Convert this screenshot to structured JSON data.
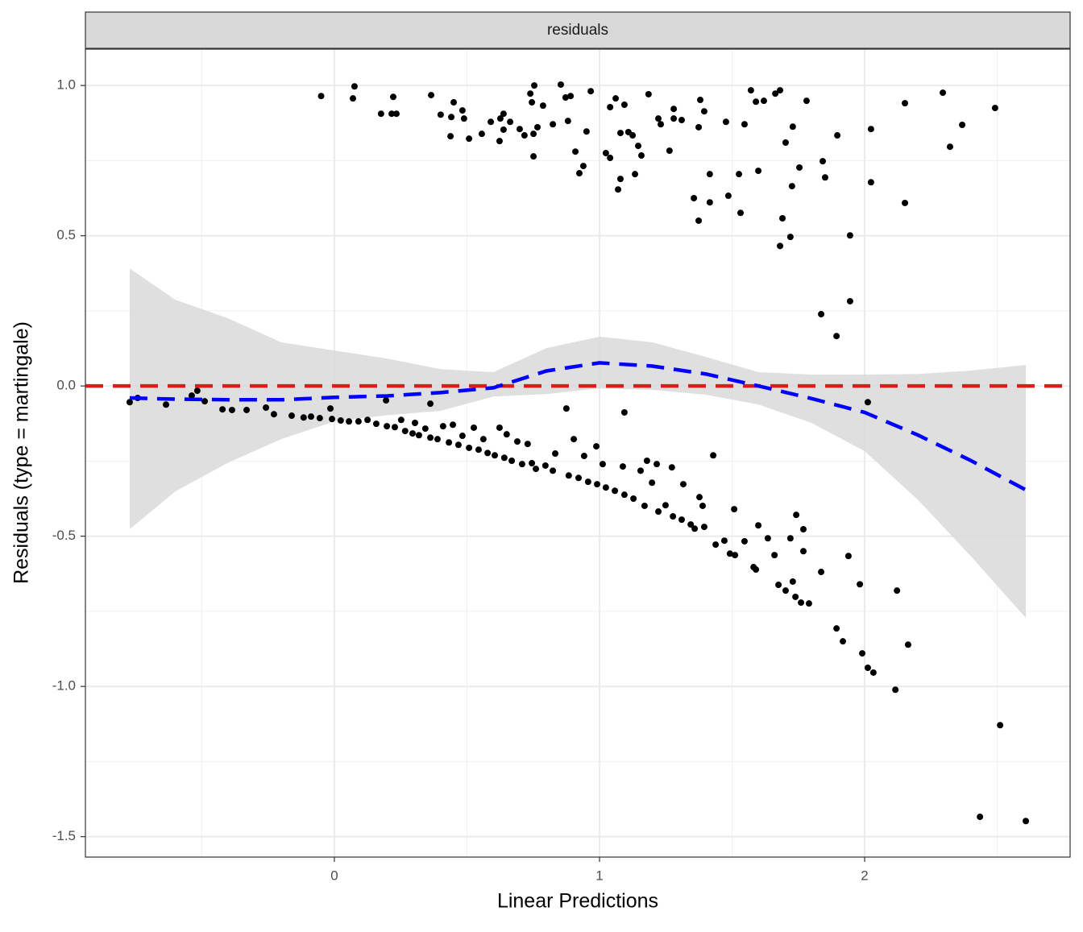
{
  "chart_data": {
    "type": "scatter",
    "facet_label": "residuals",
    "x_label": "Linear Predictions",
    "y_label": "Residuals (type = martingale)",
    "xlim": [
      -0.939,
      2.775
    ],
    "ylim": [
      -1.568,
      1.121
    ],
    "xticks": [
      0,
      1,
      2
    ],
    "yticks": [
      {
        "value": -1.5,
        "label": "-1.5"
      },
      {
        "value": -1,
        "label": "-1.0"
      },
      {
        "value": -0.5,
        "label": "-0.5"
      },
      {
        "value": 0,
        "label": "0.0"
      },
      {
        "value": 0.5,
        "label": "0.5"
      },
      {
        "value": 1,
        "label": "1.0"
      }
    ],
    "minor_xticks": [
      -0.5,
      0.5,
      1.5,
      2.5
    ],
    "minor_yticks": [
      -1.25,
      -0.75,
      -0.25,
      0.25,
      0.75
    ],
    "grid": true,
    "points": {
      "color": "#000000",
      "x": [
        -0.05,
        0.076,
        0.07,
        0.176,
        0.222,
        0.216,
        0.234,
        0.365,
        0.401,
        0.45,
        0.441,
        0.483,
        0.489,
        0.438,
        0.508,
        0.556,
        0.59,
        0.626,
        0.638,
        0.623,
        0.638,
        0.663,
        0.699,
        0.717,
        0.739,
        0.754,
        0.745,
        0.751,
        0.751,
        0.766,
        0.787,
        0.824,
        0.854,
        0.872,
        0.891,
        0.881,
        0.909,
        0.924,
        0.939,
        0.951,
        0.967,
        1.024,
        1.04,
        1.04,
        1.061,
        1.079,
        1.079,
        1.07,
        1.094,
        1.109,
        1.125,
        1.134,
        1.146,
        1.158,
        1.185,
        1.222,
        1.231,
        1.264,
        1.28,
        1.28,
        1.31,
        1.356,
        1.374,
        1.38,
        1.374,
        1.395,
        1.416,
        1.416,
        1.477,
        1.486,
        1.526,
        1.532,
        1.547,
        1.571,
        1.59,
        1.599,
        1.62,
        1.663,
        1.681,
        1.681,
        1.69,
        1.702,
        1.72,
        1.729,
        1.726,
        1.754,
        1.781,
        1.836,
        1.842,
        1.851,
        1.897,
        1.894,
        1.945,
        1.945,
        2.024,
        2.024,
        2.152,
        2.152,
        2.295,
        2.322,
        2.368,
        2.492,
        -0.772,
        -0.742,
        -0.635,
        -0.538,
        -0.517,
        -0.489,
        -0.422,
        -0.386,
        -0.331,
        -0.258,
        -0.228,
        -0.161,
        -0.116,
        -0.088,
        -0.055,
        -0.015,
        -0.009,
        0.024,
        0.055,
        0.091,
        0.125,
        0.158,
        0.195,
        0.198,
        0.228,
        0.252,
        0.267,
        0.295,
        0.304,
        0.319,
        0.343,
        0.362,
        0.362,
        0.389,
        0.41,
        0.432,
        0.447,
        0.468,
        0.483,
        0.508,
        0.526,
        0.544,
        0.562,
        0.578,
        0.605,
        0.623,
        0.641,
        0.65,
        0.669,
        0.69,
        0.708,
        0.729,
        0.745,
        0.76,
        0.796,
        0.824,
        0.833,
        0.875,
        0.884,
        0.903,
        0.921,
        0.942,
        0.957,
        0.988,
        0.991,
        1.012,
        1.024,
        1.058,
        1.094,
        1.094,
        1.088,
        1.128,
        1.155,
        1.17,
        1.179,
        1.198,
        1.216,
        1.222,
        1.249,
        1.273,
        1.277,
        1.31,
        1.316,
        1.344,
        1.359,
        1.377,
        1.389,
        1.395,
        1.429,
        1.438,
        1.471,
        1.492,
        1.508,
        1.511,
        1.547,
        1.581,
        1.59,
        1.599,
        1.635,
        1.66,
        1.675,
        1.702,
        1.72,
        1.729,
        1.742,
        1.739,
        1.76,
        1.769,
        1.769,
        1.79,
        1.836,
        1.894,
        1.918,
        1.939,
        1.982,
        1.991,
        2.012,
        2.012,
        2.033,
        2.116,
        2.122,
        2.164,
        2.435,
        2.511,
        2.608
      ],
      "y": [
        0.965,
        0.997,
        0.957,
        0.906,
        0.962,
        0.906,
        0.906,
        0.968,
        0.903,
        0.944,
        0.895,
        0.917,
        0.89,
        0.831,
        0.823,
        0.839,
        0.879,
        0.89,
        0.906,
        0.815,
        0.853,
        0.879,
        0.855,
        0.834,
        0.973,
        1.0,
        0.944,
        0.839,
        0.764,
        0.861,
        0.933,
        0.871,
        1.003,
        0.96,
        0.965,
        0.882,
        0.78,
        0.708,
        0.732,
        0.847,
        0.981,
        0.775,
        0.928,
        0.759,
        0.957,
        0.842,
        0.689,
        0.654,
        0.936,
        0.845,
        0.834,
        0.705,
        0.799,
        0.767,
        0.971,
        0.89,
        0.871,
        0.783,
        0.922,
        0.89,
        0.885,
        0.625,
        0.55,
        0.952,
        0.861,
        0.914,
        0.705,
        0.611,
        0.879,
        0.633,
        0.705,
        0.576,
        0.871,
        0.984,
        0.946,
        0.716,
        0.949,
        0.973,
        0.984,
        0.466,
        0.558,
        0.81,
        0.496,
        0.863,
        0.665,
        0.727,
        0.949,
        0.239,
        0.748,
        0.694,
        0.834,
        0.166,
        0.501,
        0.282,
        0.855,
        0.678,
        0.941,
        0.609,
        0.976,
        0.796,
        0.869,
        0.925,
        -0.054,
        -0.04,
        -0.062,
        -0.032,
        -0.016,
        -0.051,
        -0.078,
        -0.08,
        -0.08,
        -0.072,
        -0.094,
        -0.099,
        -0.105,
        -0.102,
        -0.107,
        -0.075,
        -0.11,
        -0.115,
        -0.118,
        -0.118,
        -0.113,
        -0.126,
        -0.048,
        -0.134,
        -0.137,
        -0.113,
        -0.15,
        -0.158,
        -0.123,
        -0.164,
        -0.142,
        -0.059,
        -0.172,
        -0.177,
        -0.134,
        -0.188,
        -0.129,
        -0.196,
        -0.166,
        -0.206,
        -0.139,
        -0.212,
        -0.177,
        -0.223,
        -0.231,
        -0.139,
        -0.239,
        -0.161,
        -0.249,
        -0.185,
        -0.26,
        -0.193,
        -0.257,
        -0.276,
        -0.265,
        -0.282,
        -0.225,
        -0.075,
        -0.298,
        -0.177,
        -0.306,
        -0.233,
        -0.319,
        -0.201,
        -0.327,
        -0.26,
        -0.338,
        -0.349,
        -0.088,
        -0.362,
        -0.268,
        -0.375,
        -0.282,
        -0.399,
        -0.249,
        -0.322,
        -0.26,
        -0.418,
        -0.397,
        -0.271,
        -0.434,
        -0.445,
        -0.327,
        -0.461,
        -0.475,
        -0.37,
        -0.399,
        -0.469,
        -0.231,
        -0.528,
        -0.515,
        -0.558,
        -0.41,
        -0.563,
        -0.517,
        -0.603,
        -0.611,
        -0.464,
        -0.507,
        -0.563,
        -0.662,
        -0.681,
        -0.507,
        -0.651,
        -0.429,
        -0.702,
        -0.721,
        -0.477,
        -0.55,
        -0.724,
        -0.619,
        -0.807,
        -0.85,
        -0.566,
        -0.66,
        -0.89,
        -0.054,
        -0.938,
        -0.954,
        -1.011,
        -0.681,
        -0.861,
        -1.434,
        -1.129,
        -1.448
      ]
    },
    "smooth": {
      "color": "#0000ff",
      "band_color": "#d9d9d9",
      "x": [
        -0.772,
        -0.6,
        -0.4,
        -0.2,
        0,
        0.2,
        0.4,
        0.6,
        0.8,
        1.0,
        1.2,
        1.4,
        1.6,
        1.8,
        2.0,
        2.2,
        2.4,
        2.608
      ],
      "y": [
        -0.04,
        -0.044,
        -0.046,
        -0.046,
        -0.038,
        -0.033,
        -0.022,
        -0.006,
        0.05,
        0.077,
        0.066,
        0.04,
        0.0,
        -0.042,
        -0.088,
        -0.163,
        -0.248,
        -0.346
      ],
      "lower": [
        -0.477,
        -0.351,
        -0.255,
        -0.177,
        -0.118,
        -0.097,
        -0.083,
        -0.035,
        -0.027,
        -0.008,
        -0.013,
        -0.029,
        -0.062,
        -0.123,
        -0.217,
        -0.378,
        -0.566,
        -0.772
      ],
      "upper": [
        0.391,
        0.287,
        0.225,
        0.145,
        0.118,
        0.091,
        0.056,
        0.046,
        0.126,
        0.164,
        0.145,
        0.097,
        0.046,
        0.038,
        0.038,
        0.04,
        0.051,
        0.07
      ]
    },
    "hline": {
      "value": 0,
      "color": "#e31a1c"
    }
  }
}
